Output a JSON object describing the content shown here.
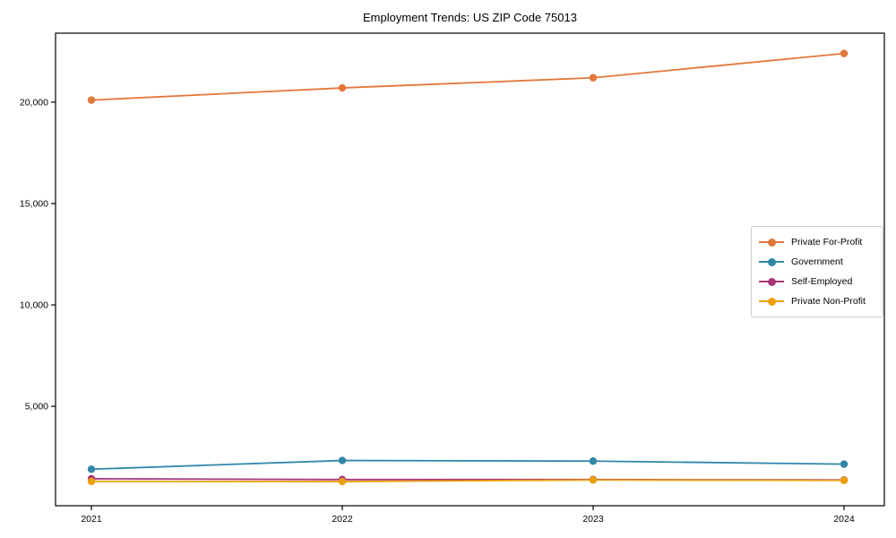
{
  "figure": {
    "background": "#ffffff",
    "axes_color": "#000000",
    "tick_label_color": "#000000"
  },
  "chart_data": {
    "type": "line",
    "title": "Employment Trends: US ZIP Code 75013",
    "categories": [
      "2021",
      "2022",
      "2023",
      "2024"
    ],
    "series": [
      {
        "name": "Private For-Profit",
        "color": "#e2773b",
        "values": [
          20100,
          20700,
          21200,
          22400
        ]
      },
      {
        "name": "Government",
        "color": "#3086a9",
        "values": [
          1900,
          2330,
          2300,
          2150
        ]
      },
      {
        "name": "Self-Employed",
        "color": "#a53778",
        "values": [
          1430,
          1390,
          1390,
          1370
        ]
      },
      {
        "name": "Private Non-Profit",
        "color": "#ec9f0c",
        "values": [
          1300,
          1290,
          1370,
          1350
        ]
      }
    ],
    "xlabel": "",
    "ylabel": "",
    "ylim": [
      100,
      23400
    ],
    "yticks": [
      5000,
      10000,
      15000,
      20000
    ],
    "ytick_labels": [
      "5,000",
      "10,000",
      "15,000",
      "20,000"
    ],
    "grid": false,
    "legend": {
      "position": "center-right",
      "border_color": "#cccccc"
    }
  }
}
